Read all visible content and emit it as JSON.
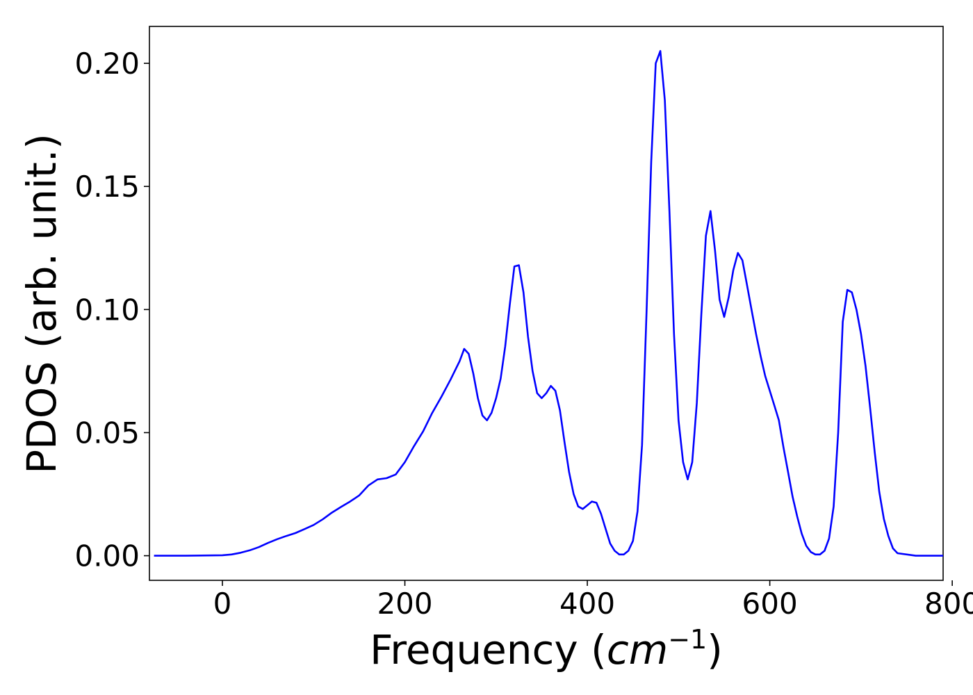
{
  "chart_data": {
    "type": "line",
    "title": "",
    "xlabel_main": "Frequency (",
    "xlabel_math": "cm",
    "xlabel_sup": "−1",
    "xlabel_close": ")",
    "ylabel": "PDOS (arb. unit.)",
    "xlim": [
      -80,
      790
    ],
    "ylim": [
      -0.01,
      0.215
    ],
    "xticks": [
      0,
      200,
      400,
      600,
      800
    ],
    "xtick_labels": [
      "0",
      "200",
      "400",
      "600",
      "800"
    ],
    "yticks": [
      0.0,
      0.05,
      0.1,
      0.15,
      0.2
    ],
    "ytick_labels": [
      "0.00",
      "0.05",
      "0.10",
      "0.15",
      "0.20"
    ],
    "grid": false,
    "line_color": "#0000ff",
    "series": [
      {
        "x": [
          -75,
          -40,
          0,
          10,
          20,
          30,
          40,
          50,
          60,
          70,
          80,
          90,
          100,
          110,
          120,
          130,
          140,
          150,
          160,
          170,
          180,
          190,
          200,
          210,
          220,
          230,
          240,
          250,
          260,
          265,
          270,
          275,
          280,
          285,
          290,
          295,
          300,
          305,
          310,
          315,
          320,
          325,
          330,
          335,
          340,
          345,
          350,
          355,
          360,
          365,
          370,
          375,
          380,
          385,
          390,
          395,
          400,
          405,
          410,
          415,
          420,
          425,
          430,
          435,
          440,
          445,
          450,
          455,
          460,
          465,
          470,
          475,
          480,
          485,
          490,
          495,
          500,
          505,
          510,
          515,
          520,
          525,
          530,
          535,
          540,
          545,
          550,
          555,
          560,
          565,
          570,
          575,
          580,
          585,
          590,
          595,
          600,
          605,
          610,
          615,
          620,
          625,
          630,
          635,
          640,
          645,
          650,
          655,
          660,
          665,
          670,
          675,
          680,
          685,
          690,
          695,
          700,
          705,
          710,
          715,
          720,
          725,
          730,
          735,
          740,
          760,
          790
        ],
        "y": [
          0.0,
          0.0,
          0.0002,
          0.0005,
          0.0012,
          0.0022,
          0.0035,
          0.0052,
          0.0067,
          0.008,
          0.0092,
          0.0108,
          0.0125,
          0.0148,
          0.0175,
          0.0198,
          0.022,
          0.0245,
          0.0285,
          0.031,
          0.0315,
          0.033,
          0.038,
          0.0445,
          0.0505,
          0.058,
          0.0645,
          0.0715,
          0.079,
          0.084,
          0.082,
          0.074,
          0.064,
          0.057,
          0.055,
          0.058,
          0.064,
          0.072,
          0.085,
          0.102,
          0.1175,
          0.118,
          0.107,
          0.089,
          0.075,
          0.066,
          0.064,
          0.066,
          0.069,
          0.067,
          0.059,
          0.046,
          0.034,
          0.025,
          0.02,
          0.019,
          0.0205,
          0.022,
          0.0215,
          0.017,
          0.011,
          0.005,
          0.002,
          0.0005,
          0.0005,
          0.002,
          0.006,
          0.018,
          0.045,
          0.1,
          0.16,
          0.2,
          0.205,
          0.185,
          0.14,
          0.09,
          0.055,
          0.038,
          0.031,
          0.038,
          0.062,
          0.098,
          0.13,
          0.14,
          0.124,
          0.104,
          0.097,
          0.105,
          0.116,
          0.123,
          0.12,
          0.11,
          0.1,
          0.09,
          0.081,
          0.073,
          0.067,
          0.061,
          0.055,
          0.044,
          0.034,
          0.024,
          0.016,
          0.009,
          0.004,
          0.0015,
          0.0005,
          0.0005,
          0.002,
          0.007,
          0.02,
          0.05,
          0.095,
          0.108,
          0.107,
          0.1,
          0.09,
          0.077,
          0.06,
          0.042,
          0.026,
          0.015,
          0.008,
          0.003,
          0.001,
          0.0,
          0.0
        ]
      }
    ]
  }
}
